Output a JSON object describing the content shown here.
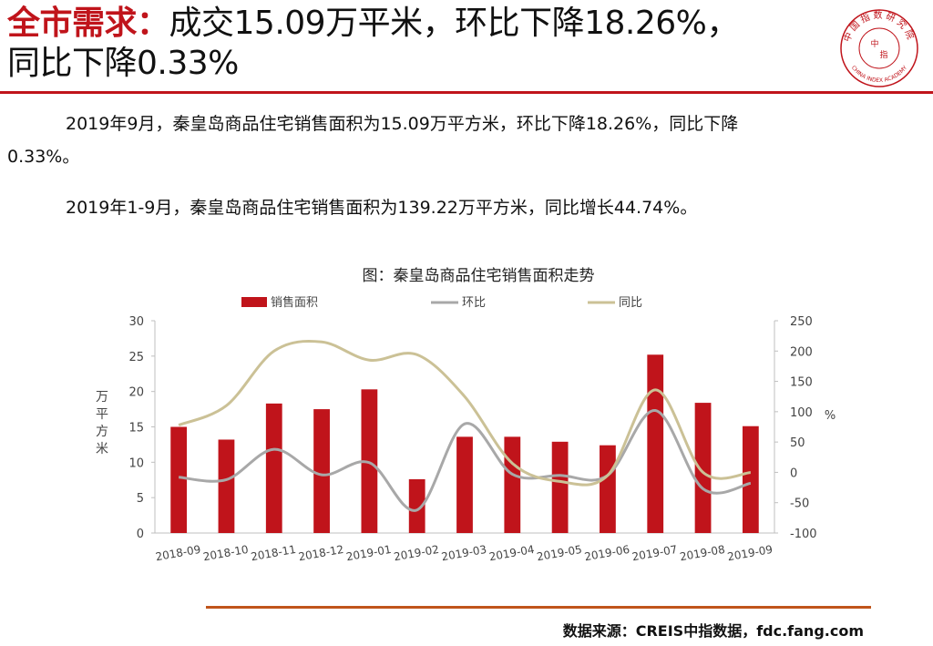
{
  "header": {
    "title_key": "全市需求：",
    "title_rest_1": "成交15.09万平米，环比下降18.26%，",
    "title_rest_2": "同比下降0.33%"
  },
  "logo": {
    "text_top": "中国指数研究院",
    "text_center_1": "中",
    "text_center_2": "指",
    "text_bottom": "CHINA INDEX ACADEMY",
    "color": "#c0141b"
  },
  "paragraphs": {
    "p1_line1": "2019年9月，秦皇岛商品住宅销售面积为15.09万平方米，环比下降18.26%，同比下降",
    "p1_line2": "0.33%。",
    "p2": "2019年1-9月，秦皇岛商品住宅销售面积为139.22万平方米，同比增长44.74%。"
  },
  "chart_data": {
    "type": "bar",
    "title": "图：秦皇岛商品住宅销售面积走势",
    "categories": [
      "2018-09",
      "2018-10",
      "2018-11",
      "2018-12",
      "2019-01",
      "2019-02",
      "2019-03",
      "2019-04",
      "2019-05",
      "2019-06",
      "2019-07",
      "2019-08",
      "2019-09"
    ],
    "series": [
      {
        "name": "销售面积",
        "type": "bar",
        "axis": "left",
        "color": "#c0141b",
        "values": [
          15.0,
          13.2,
          18.3,
          17.5,
          20.3,
          7.6,
          13.6,
          13.6,
          12.9,
          12.4,
          25.2,
          18.4,
          15.1
        ]
      },
      {
        "name": "环比",
        "type": "line",
        "axis": "right",
        "color": "#a8a8a8",
        "values": [
          -8,
          -12,
          38,
          -4,
          16,
          -62,
          80,
          -3,
          -5,
          -5,
          102,
          -27,
          -18
        ]
      },
      {
        "name": "同比",
        "type": "line",
        "axis": "right",
        "color": "#cbc196",
        "values": [
          78,
          110,
          200,
          215,
          185,
          194,
          125,
          15,
          -15,
          -5,
          136,
          0,
          -0.33
        ]
      }
    ],
    "y_left": {
      "label": "万平方米",
      "min": 0,
      "max": 30,
      "ticks": [
        0,
        5,
        10,
        15,
        20,
        25,
        30
      ]
    },
    "y_right": {
      "label": "%",
      "min": -100,
      "max": 250,
      "ticks": [
        -100,
        -50,
        0,
        50,
        100,
        150,
        200,
        250
      ]
    },
    "legend_position": "top-center",
    "grid": false
  },
  "source": "数据来源：CREIS中指数据，fdc.fang.com"
}
